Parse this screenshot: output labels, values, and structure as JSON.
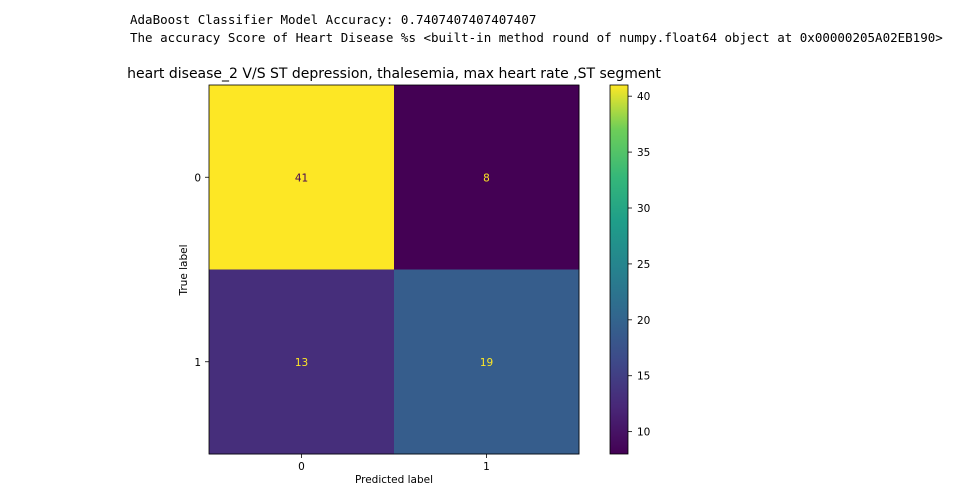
{
  "output": {
    "line1": "AdaBoost Classifier Model Accuracy: 0.7407407407407407",
    "line2": "The accuracy Score of Heart Disease %s <built-in method round of numpy.float64 object at 0x00000205A02EB190>"
  },
  "chart_data": {
    "type": "heatmap",
    "title": "heart disease_2 V/S ST depression, thalesemia, max heart rate ,ST segment",
    "xlabel": "Predicted label",
    "ylabel": "True label",
    "x_categories": [
      "0",
      "1"
    ],
    "y_categories": [
      "0",
      "1"
    ],
    "values": [
      [
        41,
        8
      ],
      [
        13,
        19
      ]
    ],
    "colormap": "viridis",
    "colorbar": {
      "min": 8,
      "max": 41,
      "ticks": [
        10,
        15,
        20,
        25,
        30,
        35,
        40
      ]
    },
    "text_colors": {
      "light_cell": "#440154",
      "dark_cell": "#fde725"
    }
  }
}
